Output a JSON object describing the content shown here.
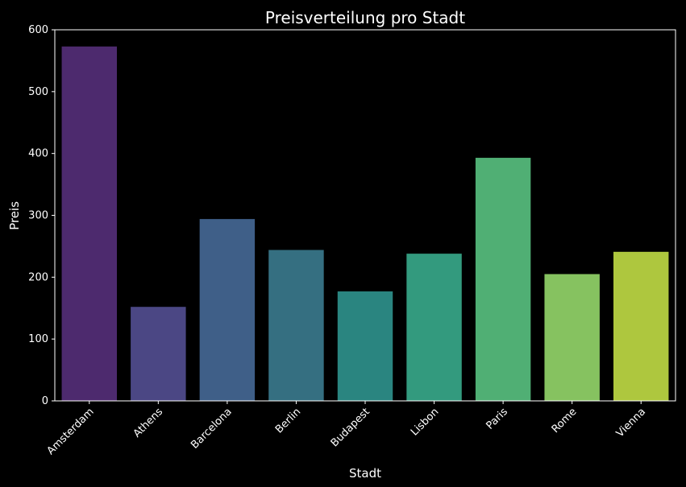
{
  "chart_data": {
    "type": "bar",
    "title": "Preisverteilung pro Stadt",
    "xlabel": "Stadt",
    "ylabel": "Preis",
    "categories": [
      "Amsterdam",
      "Athens",
      "Barcelona",
      "Berlin",
      "Budapest",
      "Lisbon",
      "Paris",
      "Rome",
      "Vienna"
    ],
    "values": [
      573,
      152,
      294,
      244,
      177,
      238,
      393,
      205,
      241
    ],
    "colors": [
      "#4d2a6e",
      "#4b4784",
      "#3f5f88",
      "#356f81",
      "#2a8580",
      "#339a7e",
      "#50af74",
      "#86c260",
      "#aec73e"
    ],
    "ylim": [
      0,
      600
    ],
    "yticks": [
      0,
      100,
      200,
      300,
      400,
      500,
      600
    ],
    "grid": false,
    "background": "#000000",
    "foreground": "#ffffff"
  }
}
